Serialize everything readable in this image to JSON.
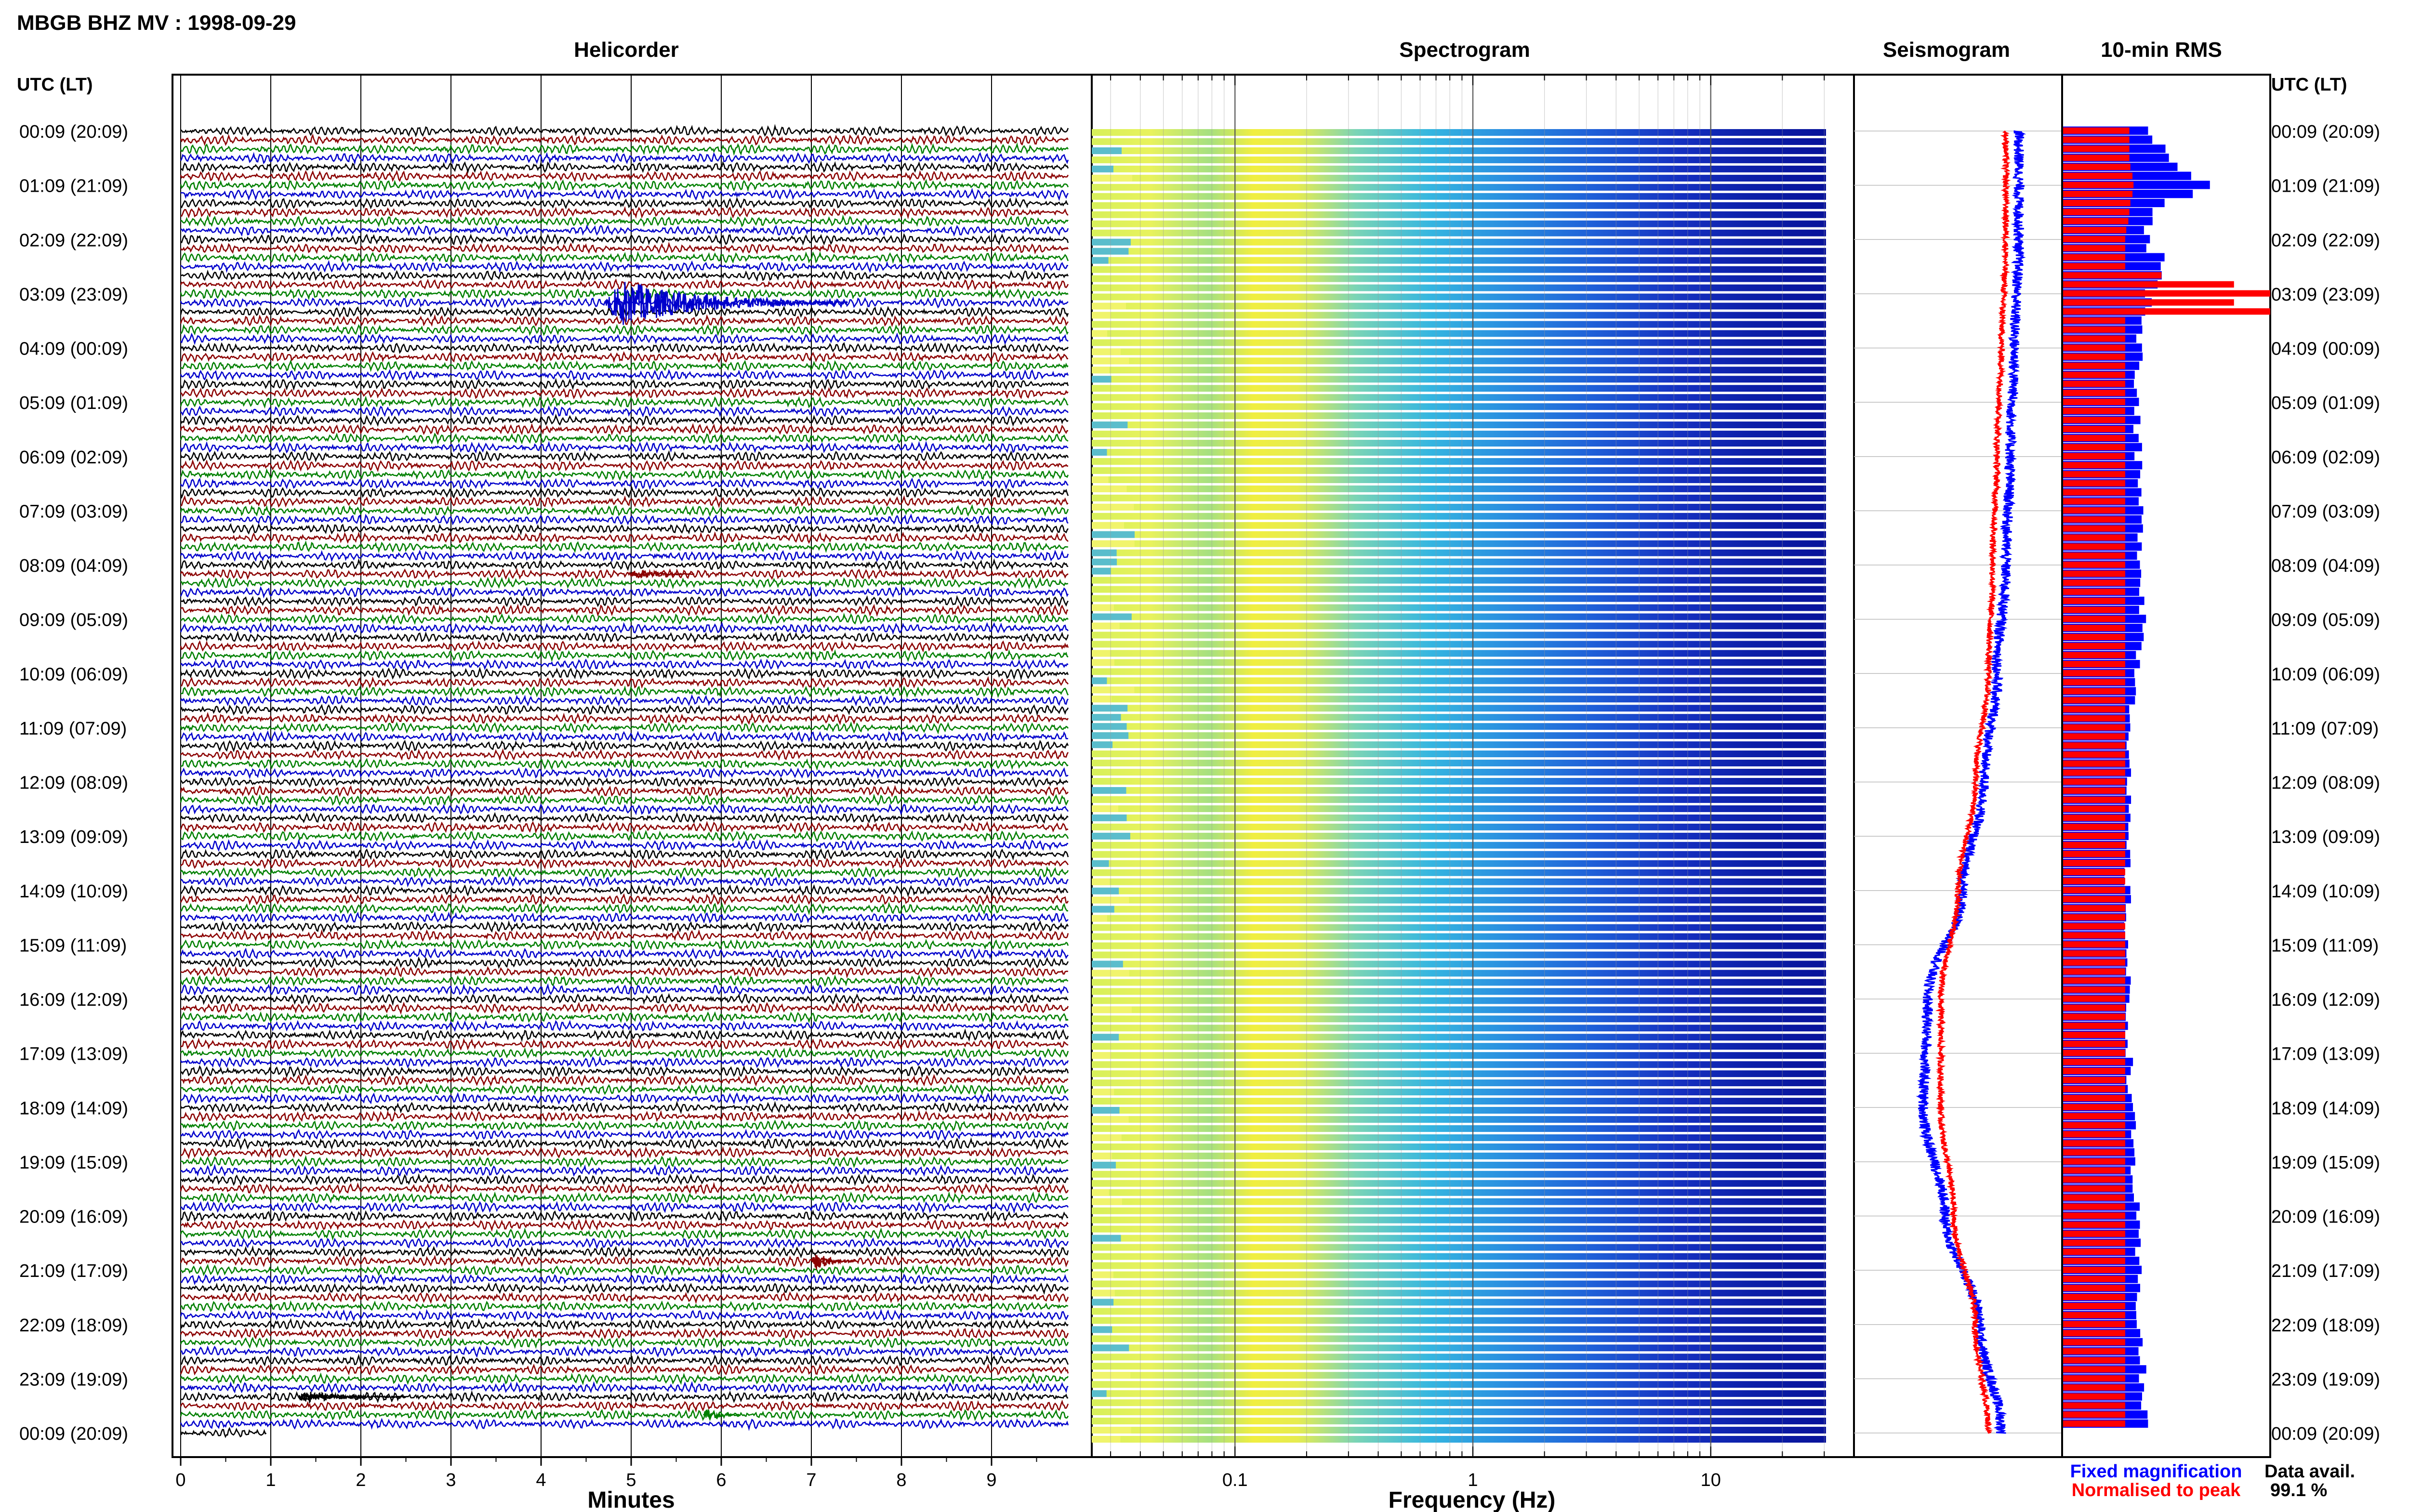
{
  "header": {
    "title": "MBGB BHZ MV : 1998-09-29"
  },
  "colors": {
    "trace_cycle": [
      "#000000",
      "#8b0000",
      "#008000",
      "#0000cc"
    ],
    "rms_fixed": "#0000ff",
    "rms_normalised": "#ff0000"
  },
  "chart_data": [
    {
      "type": "line",
      "panel": "helicorder",
      "title": "Helicorder",
      "xlabel": "Minutes",
      "xlim": [
        0,
        10
      ],
      "x_ticks": [
        "0",
        "1",
        "2",
        "3",
        "4",
        "5",
        "6",
        "7",
        "8",
        "9"
      ],
      "left_axis_label": "UTC (LT)",
      "right_axis_label": "UTC (LT)",
      "row_labels": [
        "00:09 (20:09)",
        "01:09 (21:09)",
        "02:09 (22:09)",
        "03:09 (23:09)",
        "04:09 (00:09)",
        "05:09 (01:09)",
        "06:09 (02:09)",
        "07:09 (03:09)",
        "08:09 (04:09)",
        "09:09 (05:09)",
        "10:09 (06:09)",
        "11:09 (07:09)",
        "12:09 (08:09)",
        "13:09 (09:09)",
        "14:09 (10:09)",
        "15:09 (11:09)",
        "16:09 (12:09)",
        "17:09 (13:09)",
        "18:09 (14:09)",
        "19:09 (15:09)",
        "20:09 (16:09)",
        "21:09 (17:09)",
        "22:09 (18:09)",
        "23:09 (19:09)",
        "00:09 (20:09)"
      ],
      "lines_per_hour": 6,
      "events": [
        {
          "hour": 3.1,
          "minute": 4.7,
          "duration_min": 2.7,
          "amplitude": 6
        },
        {
          "hour": 8.2,
          "minute": 5.0,
          "duration_min": 0.7,
          "amplitude": 1.5
        },
        {
          "hour": 20.9,
          "minute": 7.0,
          "duration_min": 0.5,
          "amplitude": 2.5
        },
        {
          "hour": 23.4,
          "minute": 1.3,
          "duration_min": 1.2,
          "amplitude": 1.6
        },
        {
          "hour": 23.7,
          "minute": 5.8,
          "duration_min": 0.4,
          "amplitude": 1.8
        }
      ]
    },
    {
      "type": "heatmap",
      "panel": "spectrogram",
      "title": "Spectrogram",
      "xlabel": "Frequency (Hz)",
      "x_scale": "log",
      "xlim": [
        0.025,
        40
      ],
      "x_ticks": [
        0.1,
        1,
        10
      ],
      "x_tick_labels": [
        "0.1",
        "1",
        "10"
      ]
    },
    {
      "type": "line",
      "panel": "seismogram",
      "title": "Seismogram",
      "x": [
        0,
        2,
        4,
        6,
        8,
        10,
        12,
        14,
        16,
        18,
        20,
        22,
        24
      ],
      "fixed_magnification": [
        0.7,
        0.7,
        0.65,
        0.6,
        0.55,
        0.45,
        0.3,
        0.05,
        -0.35,
        -0.4,
        -0.15,
        0.25,
        0.5
      ],
      "normalised_to_peak": [
        0.55,
        0.55,
        0.5,
        0.45,
        0.4,
        0.35,
        0.2,
        0.0,
        -0.2,
        -0.2,
        -0.05,
        0.2,
        0.35
      ]
    },
    {
      "type": "bar",
      "panel": "rms",
      "title": "10-min RMS",
      "orientation": "horizontal",
      "legend": [
        "Fixed magnification",
        "Normalised to peak"
      ],
      "hour_rows": [
        0,
        0.5,
        1,
        1.5,
        2,
        2.5,
        3,
        3.5,
        4,
        5,
        6,
        7,
        8,
        9,
        10,
        11,
        12,
        13,
        14,
        15,
        16,
        17,
        18,
        19,
        20,
        21,
        22,
        23,
        24
      ],
      "fixed_magnification": [
        0.42,
        0.5,
        0.68,
        0.45,
        0.4,
        0.5,
        0.42,
        0.39,
        0.37,
        0.36,
        0.36,
        0.37,
        0.38,
        0.39,
        0.36,
        0.33,
        0.31,
        0.31,
        0.31,
        0.31,
        0.31,
        0.32,
        0.33,
        0.34,
        0.35,
        0.36,
        0.37,
        0.38,
        0.4
      ],
      "normalised_to_peak": [
        0.32,
        0.32,
        0.34,
        0.32,
        0.3,
        0.3,
        1.0,
        0.3,
        0.3,
        0.3,
        0.3,
        0.3,
        0.3,
        0.3,
        0.3,
        0.3,
        0.3,
        0.3,
        0.3,
        0.3,
        0.3,
        0.3,
        0.3,
        0.3,
        0.3,
        0.3,
        0.3,
        0.3,
        0.3
      ]
    }
  ],
  "legend": {
    "fixed": "Fixed magnification",
    "normalised": "Normalised to peak"
  },
  "availability": {
    "label": "Data avail.",
    "value": "99.1 %"
  }
}
